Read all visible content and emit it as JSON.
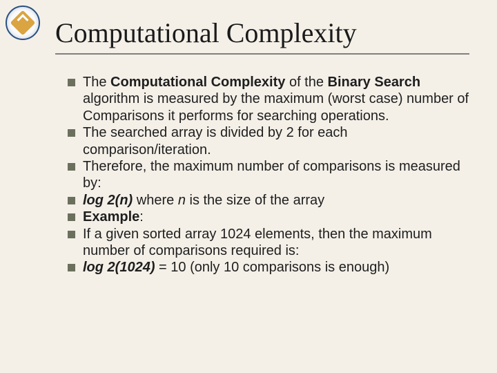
{
  "slide": {
    "title": "Computational Complexity",
    "background_color": "#f4f0e8",
    "title_fontsize": 40,
    "title_font": "Times New Roman",
    "title_underline_color": "#808080",
    "body_fontsize": 20,
    "bullet_color": "#6b705c",
    "bullet_shape": "square",
    "bullets": [
      {
        "runs": [
          {
            "t": "The ",
            "style": "normal"
          },
          {
            "t": "Computational Complexity",
            "style": "b"
          },
          {
            "t": " of the ",
            "style": "normal"
          },
          {
            "t": "Binary Search",
            "style": "b"
          },
          {
            "t": " algorithm is measured by the maximum (worst case) number of Comparisons it performs for searching operations.",
            "style": "normal"
          }
        ]
      },
      {
        "runs": [
          {
            "t": "The searched array is divided by 2 for each comparison/iteration.",
            "style": "normal"
          }
        ]
      },
      {
        "runs": [
          {
            "t": "Therefore, the maximum number of comparisons is measured by:",
            "style": "normal"
          }
        ]
      },
      {
        "runs": [
          {
            "t": "log 2(n)",
            "style": "bi"
          },
          {
            "t": " where ",
            "style": "normal"
          },
          {
            "t": "n",
            "style": "i"
          },
          {
            "t": " is the size of the array",
            "style": "normal"
          }
        ]
      },
      {
        "runs": [
          {
            "t": "Example",
            "style": "b"
          },
          {
            "t": ":",
            "style": "normal"
          }
        ]
      },
      {
        "runs": [
          {
            "t": "If a given sorted array 1024 elements, then the maximum number of comparisons required is:",
            "style": "normal"
          }
        ]
      },
      {
        "runs": [
          {
            "t": "log 2(1024)",
            "style": "bi"
          },
          {
            "t": " = 10 (only 10 comparisons is enough)",
            "style": "normal"
          }
        ]
      }
    ]
  },
  "logo": {
    "outer_border_color": "#2a5080",
    "inner_fill": "#d9a441",
    "inner_accent": "#ffffff"
  }
}
